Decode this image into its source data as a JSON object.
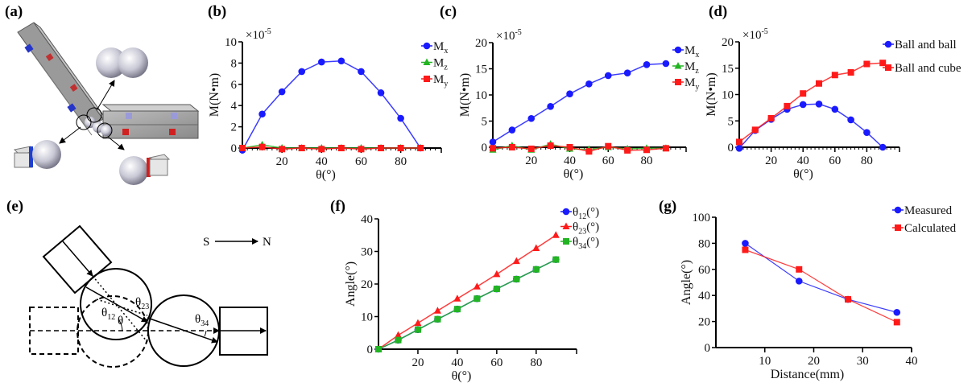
{
  "panel_labels": {
    "a": "(a)",
    "b": "(b)",
    "c": "(c)",
    "d": "(d)",
    "e": "(e)",
    "f": "(f)",
    "g": "(g)"
  },
  "diagram_e": {
    "south": "S",
    "north": "N",
    "theta12": {
      "base": "θ",
      "sub": "12"
    },
    "theta": "θ",
    "theta23": {
      "base": "θ",
      "sub": "23"
    },
    "theta34": {
      "base": "θ",
      "sub": "34"
    }
  },
  "colors": {
    "blue": "#1a1aff",
    "red": "#ff1a1a",
    "green": "#22b422",
    "magnet_blue": "#1f3fd0",
    "magnet_red": "#d01f1f"
  },
  "chart_data": [
    {
      "panel": "b",
      "type": "line",
      "xlabel": "θ(°)",
      "ylabel": "M(N•m)",
      "y_multiplier": {
        "base": "×10",
        "exp": "-5"
      },
      "xlim": [
        0,
        100
      ],
      "ylim": [
        0,
        10
      ],
      "xticks": [
        20,
        40,
        60,
        80
      ],
      "yticks": [
        0,
        2,
        4,
        6,
        8,
        10
      ],
      "legend": "top-right",
      "series": [
        {
          "base": "M",
          "sub": "x",
          "suffix": "",
          "marker": "circle",
          "color": "#1a1aff",
          "x": [
            0,
            10,
            20,
            30,
            40,
            50,
            60,
            70,
            80,
            90
          ],
          "y": [
            -0.2,
            3.2,
            5.3,
            7.2,
            8.1,
            8.2,
            7.2,
            5.2,
            2.8,
            0
          ]
        },
        {
          "base": "M",
          "sub": "z",
          "suffix": "",
          "marker": "triangle",
          "color": "#22b422",
          "x": [
            0,
            10,
            20,
            30,
            40,
            50,
            60,
            70,
            80,
            90
          ],
          "y": [
            0,
            0.3,
            0,
            0,
            0,
            0,
            0,
            0,
            0,
            0
          ]
        },
        {
          "base": "M",
          "sub": "y",
          "suffix": "",
          "marker": "square",
          "color": "#ff1a1a",
          "x": [
            0,
            10,
            20,
            30,
            40,
            50,
            60,
            70,
            80,
            90
          ],
          "y": [
            0,
            0.1,
            -0.1,
            0,
            -0.1,
            0,
            -0.1,
            0,
            0,
            0
          ]
        }
      ]
    },
    {
      "panel": "c",
      "type": "line",
      "xlabel": "θ(°)",
      "ylabel": "M(N•m)",
      "y_multiplier": {
        "base": "×10",
        "exp": "-5"
      },
      "xlim": [
        0,
        100
      ],
      "ylim": [
        0,
        20
      ],
      "xticks": [
        20,
        40,
        60,
        80
      ],
      "yticks": [
        0,
        5,
        10,
        15,
        20
      ],
      "legend": "top-right",
      "series": [
        {
          "base": "M",
          "sub": "x",
          "suffix": "",
          "marker": "circle",
          "color": "#1a1aff",
          "x": [
            0,
            10,
            20,
            30,
            40,
            50,
            60,
            70,
            80,
            90
          ],
          "y": [
            1,
            3.3,
            5.5,
            7.8,
            10.2,
            12.1,
            13.7,
            14.2,
            15.8,
            16
          ]
        },
        {
          "base": "M",
          "sub": "z",
          "suffix": "",
          "marker": "triangle",
          "color": "#22b422",
          "x": [
            0,
            10,
            20,
            30,
            40,
            50,
            60,
            70,
            80,
            90
          ],
          "y": [
            -0.5,
            0.3,
            -0.5,
            0.6,
            -0.3,
            -0.4,
            0,
            -0.3,
            -0.2,
            -0.2
          ]
        },
        {
          "base": "M",
          "sub": "y",
          "suffix": "",
          "marker": "square",
          "color": "#ff1a1a",
          "x": [
            0,
            10,
            20,
            30,
            40,
            50,
            60,
            70,
            80,
            90
          ],
          "y": [
            -0.2,
            0,
            -0.3,
            0.3,
            0,
            -0.8,
            0.2,
            -0.6,
            -0.5,
            -0.2
          ]
        }
      ]
    },
    {
      "panel": "d",
      "type": "line",
      "xlabel": "θ(°)",
      "ylabel": "M(N•m)",
      "y_multiplier": {
        "base": "×10",
        "exp": "-5"
      },
      "xlim": [
        0,
        100
      ],
      "ylim": [
        0,
        20
      ],
      "xticks": [
        20,
        40,
        60,
        80
      ],
      "yticks": [
        0,
        5,
        10,
        15,
        20
      ],
      "legend": "top-right",
      "series": [
        {
          "base": "Ball and ball",
          "sub": "",
          "suffix": "",
          "marker": "circle",
          "color": "#1a1aff",
          "x": [
            0,
            10,
            20,
            30,
            40,
            50,
            60,
            70,
            80,
            90
          ],
          "y": [
            -0.2,
            3.2,
            5.3,
            7.2,
            8.1,
            8.2,
            7.2,
            5.2,
            2.8,
            0
          ]
        },
        {
          "base": "Ball and cube",
          "sub": "",
          "suffix": "",
          "marker": "square",
          "color": "#ff1a1a",
          "x": [
            0,
            10,
            20,
            30,
            40,
            50,
            60,
            70,
            80,
            90
          ],
          "y": [
            1,
            3.3,
            5.5,
            7.8,
            10.2,
            12.1,
            13.7,
            14.2,
            15.8,
            16
          ]
        }
      ]
    },
    {
      "panel": "f",
      "type": "line",
      "xlabel": "θ(°)",
      "ylabel": "Angle(°)",
      "xlim": [
        0,
        100
      ],
      "ylim": [
        0,
        40
      ],
      "xticks": [
        20,
        40,
        60,
        80
      ],
      "yticks": [
        0,
        10,
        20,
        30,
        40
      ],
      "legend": "top-right",
      "series": [
        {
          "base": "θ",
          "sub": "12",
          "suffix": "(°)",
          "marker": "circle",
          "color": "#1a1aff",
          "x": [
            0,
            10,
            20,
            30,
            40,
            50,
            60,
            70,
            80,
            90
          ],
          "y": [
            0,
            2.8,
            6,
            9.2,
            12.3,
            15.5,
            18.5,
            21.5,
            24.5,
            27.5
          ]
        },
        {
          "base": "θ",
          "sub": "23",
          "suffix": "(°)",
          "marker": "triangle",
          "color": "#ff1a1a",
          "x": [
            0,
            10,
            20,
            30,
            40,
            50,
            60,
            70,
            80,
            90
          ],
          "y": [
            0,
            4.3,
            8,
            11.8,
            15.5,
            19.2,
            23,
            27,
            31,
            35
          ]
        },
        {
          "base": "θ",
          "sub": "34",
          "suffix": "(°)",
          "marker": "square",
          "color": "#22b422",
          "x": [
            0,
            10,
            20,
            30,
            40,
            50,
            60,
            70,
            80,
            90
          ],
          "y": [
            0,
            2.8,
            6,
            9.2,
            12.3,
            15.5,
            18.5,
            21.5,
            24.5,
            27.5
          ]
        }
      ]
    },
    {
      "panel": "g",
      "type": "line",
      "xlabel": "Distance(mm)",
      "ylabel": "Angle(°)",
      "xlim": [
        0,
        40
      ],
      "ylim": [
        0,
        100
      ],
      "xticks": [
        10,
        20,
        30,
        40
      ],
      "yticks": [
        0,
        20,
        40,
        60,
        80,
        100
      ],
      "legend": "top-right",
      "series": [
        {
          "base": "Measured",
          "sub": "",
          "suffix": "",
          "marker": "circle",
          "color": "#1a1aff",
          "x": [
            6,
            17,
            27,
            37
          ],
          "y": [
            80,
            51,
            37,
            27
          ]
        },
        {
          "base": "Calculated",
          "sub": "",
          "suffix": "",
          "marker": "square",
          "color": "#ff1a1a",
          "x": [
            6,
            17,
            27,
            37
          ],
          "y": [
            75,
            60,
            37,
            19.5
          ]
        }
      ]
    }
  ]
}
